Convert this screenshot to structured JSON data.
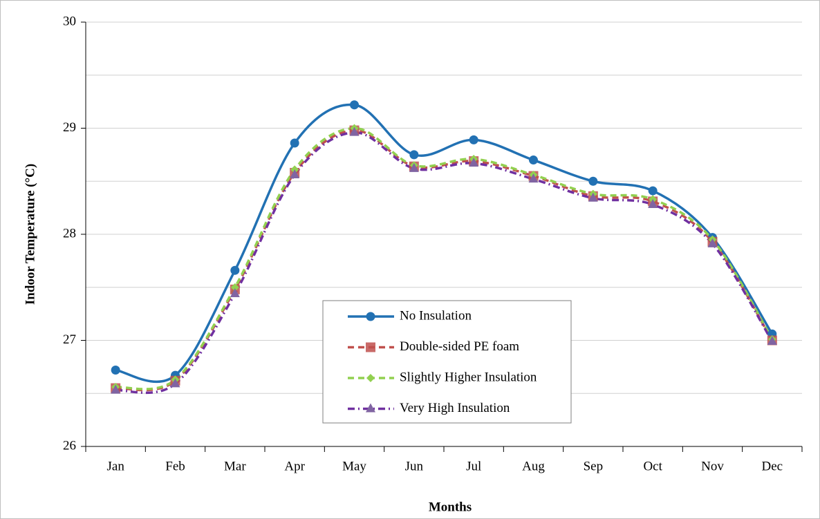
{
  "chart_data": {
    "type": "line",
    "y_label": "Indoor Temperature (°C)",
    "x_label": "Months",
    "categories": [
      "Jan",
      "Feb",
      "Mar",
      "Apr",
      "May",
      "Jun",
      "Jul",
      "Aug",
      "Sep",
      "Oct",
      "Nov",
      "Dec"
    ],
    "series": [
      {
        "name": "No Insulation",
        "color": "#2271b3",
        "marker": "circle",
        "style": "solid",
        "values": [
          26.72,
          26.67,
          27.66,
          28.86,
          29.22,
          28.75,
          28.89,
          28.7,
          28.5,
          28.41,
          27.97,
          27.06
        ]
      },
      {
        "name": "Double-sided PE foam",
        "color": "#c0504d",
        "marker": "square",
        "style": "dashed",
        "values": [
          26.55,
          26.62,
          27.48,
          28.58,
          28.98,
          28.64,
          28.69,
          28.55,
          28.36,
          28.31,
          27.93,
          27.0
        ]
      },
      {
        "name": "Slightly Higher Insulation",
        "color": "#92d050",
        "marker": "diamond",
        "style": "dashed",
        "values": [
          26.56,
          26.63,
          27.5,
          28.61,
          29.0,
          28.65,
          28.71,
          28.56,
          28.38,
          28.33,
          27.95,
          27.01
        ]
      },
      {
        "name": "Very High Insulation",
        "color": "#7030a0",
        "marker": "triangle",
        "style": "dash-dot",
        "values": [
          26.53,
          26.59,
          27.44,
          28.56,
          28.96,
          28.62,
          28.67,
          28.52,
          28.34,
          28.28,
          27.91,
          26.99
        ]
      }
    ],
    "ylim": [
      26,
      30
    ],
    "yticks": [
      26,
      27,
      28,
      29,
      30
    ],
    "minor_yticks": [
      26.5,
      27.5,
      28.5,
      29.5
    ],
    "grid": true,
    "smooth": true,
    "legend": "center"
  }
}
